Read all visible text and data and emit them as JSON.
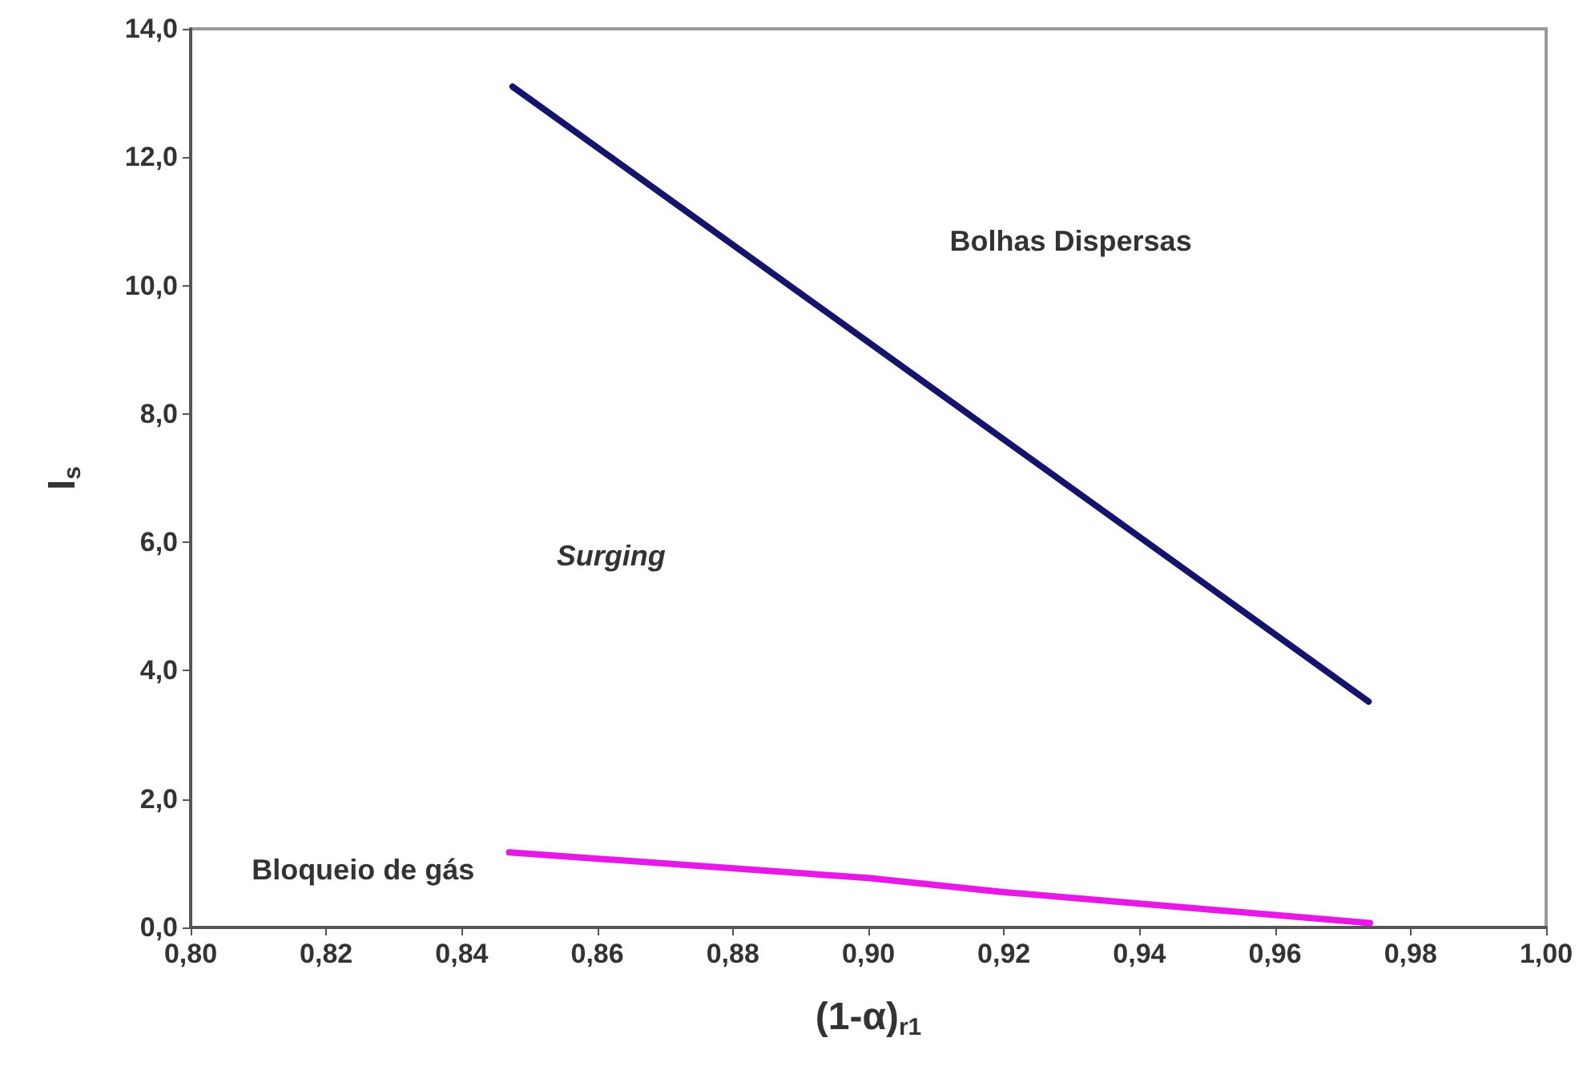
{
  "chart_data": {
    "type": "line",
    "xlabel": "(1-α)$_{r1}$",
    "ylabel": "I$_{s}$",
    "series": [
      {
        "color": "#14146e",
        "x": [
          0.8475,
          0.9738
        ],
        "values": [
          13.1,
          3.52
        ]
      },
      {
        "color": "#e619e6",
        "x": [
          0.847,
          0.9,
          0.92,
          0.94,
          0.974
        ],
        "values": [
          1.17,
          0.77,
          0.55,
          0.37,
          0.07
        ]
      }
    ],
    "xlim": [
      0.8,
      1.0
    ],
    "xticks": [
      {
        "value": 0.8,
        "label": "0,80"
      },
      {
        "value": 0.82,
        "label": "0,82"
      },
      {
        "value": 0.84,
        "label": "0,84"
      },
      {
        "value": 0.86,
        "label": "0,86"
      },
      {
        "value": 0.88,
        "label": "0,88"
      },
      {
        "value": 0.9,
        "label": "0,90"
      },
      {
        "value": 0.92,
        "label": "0,92"
      },
      {
        "value": 0.94,
        "label": "0,94"
      },
      {
        "value": 0.96,
        "label": "0,96"
      },
      {
        "value": 0.98,
        "label": "0,98"
      },
      {
        "value": 1.0,
        "label": "1,00"
      }
    ],
    "ylim": [
      0,
      14
    ],
    "yticks": [
      {
        "value": 0,
        "label": "0,0"
      },
      {
        "value": 2,
        "label": "2,0"
      },
      {
        "value": 4,
        "label": "4,0"
      },
      {
        "value": 6,
        "label": "6,0"
      },
      {
        "value": 8,
        "label": "8,0"
      },
      {
        "value": 10,
        "label": "10,0"
      },
      {
        "value": 12,
        "label": "12,0"
      },
      {
        "value": 14,
        "label": "14,0"
      }
    ],
    "annotations": [
      "Bolhas Dispersas",
      "Surging",
      "Bloqueio de gás"
    ],
    "grid": false,
    "marker": "none",
    "line_style": "solid"
  }
}
